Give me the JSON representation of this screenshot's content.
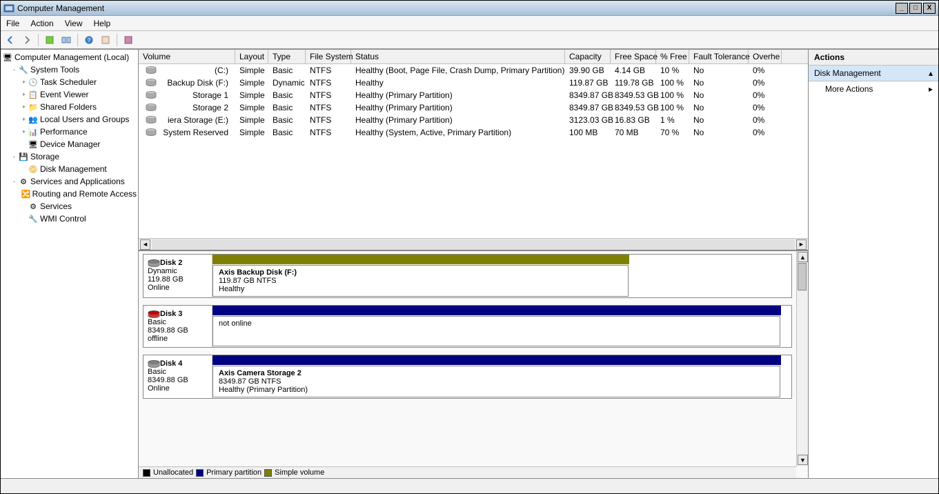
{
  "window": {
    "title": "Computer Management"
  },
  "menu": {
    "file": "File",
    "action": "Action",
    "view": "View",
    "help": "Help"
  },
  "tree": {
    "root": "Computer Management (Local)",
    "items": [
      {
        "label": "System Tools",
        "indent": 1,
        "exp": "-",
        "icon": "🔧"
      },
      {
        "label": "Task Scheduler",
        "indent": 2,
        "exp": "+",
        "icon": "🕒"
      },
      {
        "label": "Event Viewer",
        "indent": 2,
        "exp": "+",
        "icon": "📋"
      },
      {
        "label": "Shared Folders",
        "indent": 2,
        "exp": "+",
        "icon": "📁"
      },
      {
        "label": "Local Users and Groups",
        "indent": 2,
        "exp": "+",
        "icon": "👥"
      },
      {
        "label": "Performance",
        "indent": 2,
        "exp": "+",
        "icon": "📊"
      },
      {
        "label": "Device Manager",
        "indent": 2,
        "exp": "",
        "icon": "🖥"
      },
      {
        "label": "Storage",
        "indent": 1,
        "exp": "-",
        "icon": "💾"
      },
      {
        "label": "Disk Management",
        "indent": 2,
        "exp": "",
        "icon": "📀"
      },
      {
        "label": "Services and Applications",
        "indent": 1,
        "exp": "-",
        "icon": "⚙"
      },
      {
        "label": "Routing and Remote Access",
        "indent": 2,
        "exp": "",
        "icon": "🔀"
      },
      {
        "label": "Services",
        "indent": 2,
        "exp": "",
        "icon": "⚙"
      },
      {
        "label": "WMI Control",
        "indent": 2,
        "exp": "",
        "icon": "🔧"
      }
    ]
  },
  "columns": {
    "volume": "Volume",
    "layout": "Layout",
    "type": "Type",
    "filesystem": "File System",
    "status": "Status",
    "capacity": "Capacity",
    "freespace": "Free Space",
    "pctfree": "% Free",
    "fault": "Fault Tolerance",
    "overhead": "Overhe"
  },
  "col_widths": {
    "volume": 140,
    "layout": 48,
    "type": 54,
    "filesystem": 66,
    "status": 310,
    "capacity": 66,
    "freespace": 66,
    "pctfree": 48,
    "fault": 86,
    "overhead": 48
  },
  "volumes": [
    {
      "name": "(C:)",
      "layout": "Simple",
      "type": "Basic",
      "fs": "NTFS",
      "status": "Healthy (Boot, Page File, Crash Dump, Primary Partition)",
      "cap": "39.90 GB",
      "free": "4.14 GB",
      "pct": "10 %",
      "fault": "No",
      "over": "0%"
    },
    {
      "name": "Backup Disk (F:)",
      "layout": "Simple",
      "type": "Dynamic",
      "fs": "NTFS",
      "status": "Healthy",
      "cap": "119.87 GB",
      "free": "119.78 GB",
      "pct": "100 %",
      "fault": "No",
      "over": "0%"
    },
    {
      "name": "Storage 1",
      "layout": "Simple",
      "type": "Basic",
      "fs": "NTFS",
      "status": "Healthy (Primary Partition)",
      "cap": "8349.87 GB",
      "free": "8349.53 GB",
      "pct": "100 %",
      "fault": "No",
      "over": "0%"
    },
    {
      "name": "Storage 2",
      "layout": "Simple",
      "type": "Basic",
      "fs": "NTFS",
      "status": "Healthy (Primary Partition)",
      "cap": "8349.87 GB",
      "free": "8349.53 GB",
      "pct": "100 %",
      "fault": "No",
      "over": "0%"
    },
    {
      "name": "iera Storage (E:)",
      "layout": "Simple",
      "type": "Basic",
      "fs": "NTFS",
      "status": "Healthy (Primary Partition)",
      "cap": "3123.03 GB",
      "free": "16.83 GB",
      "pct": "1 %",
      "fault": "No",
      "over": "0%"
    },
    {
      "name": "System Reserved",
      "layout": "Simple",
      "type": "Basic",
      "fs": "NTFS",
      "status": "Healthy (System, Active, Primary Partition)",
      "cap": "100 MB",
      "free": "70 MB",
      "pct": "70 %",
      "fault": "No",
      "over": "0%"
    }
  ],
  "disks": [
    {
      "name": "Disk 2",
      "type": "Dynamic",
      "size": "119.88 GB",
      "state": "Online",
      "icon_color": "#808080",
      "bar_color": "#808000",
      "vol_width": 604,
      "vol_name": "Axis Backup Disk  (F:)",
      "vol_info1": "119.87 GB NTFS",
      "vol_info2": "Healthy"
    },
    {
      "name": "Disk 3",
      "type": "Basic",
      "size": "8349.88 GB",
      "state": "offline",
      "icon_color": "#c00000",
      "bar_color": "#000080",
      "vol_width": 824,
      "vol_name": "",
      "vol_info1": "not online",
      "vol_info2": ""
    },
    {
      "name": "Disk 4",
      "type": "Basic",
      "size": "8349.88 GB",
      "state": "Online",
      "icon_color": "#808080",
      "bar_color": "#000080",
      "vol_width": 824,
      "vol_name": "Axis Camera Storage 2",
      "vol_info1": "8349.87 GB NTFS",
      "vol_info2": "Healthy (Primary Partition)"
    }
  ],
  "legend": {
    "unalloc": {
      "label": "Unallocated",
      "color": "#000000"
    },
    "primary": {
      "label": "Primary partition",
      "color": "#000080"
    },
    "simple": {
      "label": "Simple volume",
      "color": "#808000"
    }
  },
  "actions": {
    "header": "Actions",
    "section": "Disk Management",
    "more": "More Actions"
  }
}
